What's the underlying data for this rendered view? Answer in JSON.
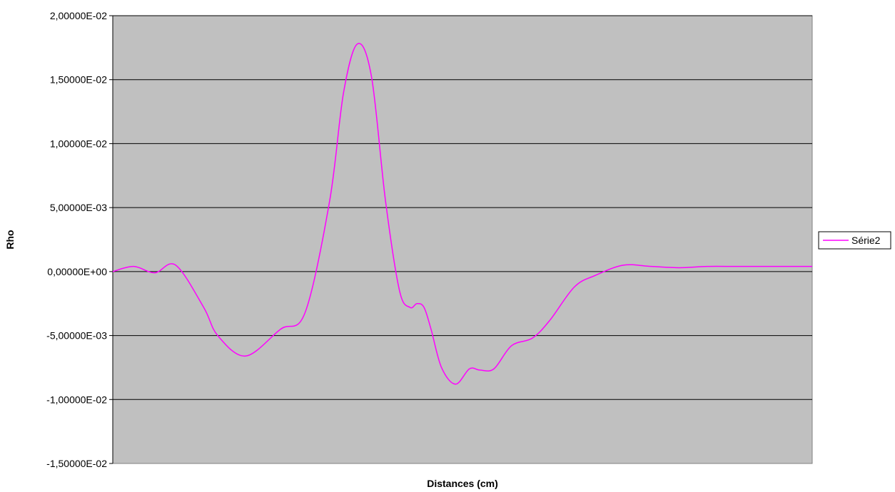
{
  "chart_data": {
    "type": "line",
    "xlabel": "Distances (cm)",
    "ylabel": "Rho",
    "ylim": [
      -0.015,
      0.02
    ],
    "y_ticks": [
      0.02,
      0.015,
      0.01,
      0.005,
      0,
      -0.005,
      -0.01,
      -0.015
    ],
    "y_tick_labels": [
      "2,00000E-02",
      "1,50000E-02",
      "1,00000E-02",
      "5,00000E-03",
      "0,00000E+00",
      "-5,00000E-03",
      "-1,00000E-02",
      "-1,50000E-02"
    ],
    "grid": true,
    "legend_position": "right",
    "plot_background": "#c0c0c0",
    "series": [
      {
        "name": "Série2",
        "color": "#ff00ff",
        "x": [
          0,
          0.03,
          0.06,
          0.09,
          0.13,
          0.15,
          0.19,
          0.24,
          0.275,
          0.31,
          0.33,
          0.35,
          0.37,
          0.39,
          0.41,
          0.425,
          0.435,
          0.445,
          0.455,
          0.47,
          0.49,
          0.51,
          0.525,
          0.545,
          0.57,
          0.6,
          0.625,
          0.66,
          0.69,
          0.73,
          0.77,
          0.81,
          0.85,
          0.89,
          0.93,
          0.97,
          1.0
        ],
        "values": [
          0.0,
          0.0004,
          -0.0001,
          0.0005,
          -0.0028,
          -0.005,
          -0.0066,
          -0.0045,
          -0.0032,
          0.0055,
          0.014,
          0.0178,
          0.0152,
          0.0055,
          -0.0015,
          -0.0028,
          -0.0025,
          -0.0028,
          -0.0045,
          -0.0075,
          -0.0088,
          -0.0076,
          -0.0077,
          -0.0076,
          -0.0058,
          -0.0052,
          -0.0038,
          -0.0012,
          -0.0003,
          0.0005,
          0.0004,
          0.0003,
          0.0004,
          0.0004,
          0.0004,
          0.0004,
          0.0004
        ]
      }
    ]
  }
}
